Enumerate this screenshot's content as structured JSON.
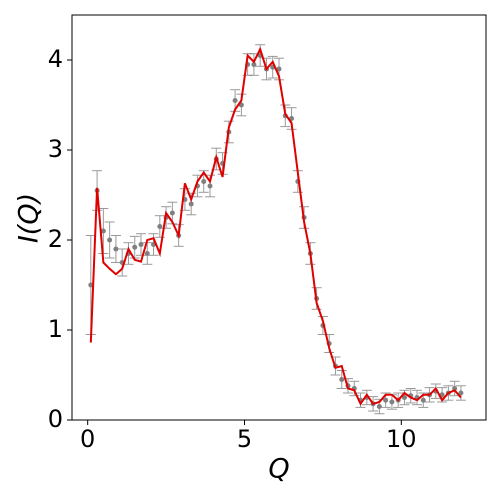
{
  "chart_data": {
    "type": "scatter",
    "xlabel": "Q",
    "ylabel": "I(Q)",
    "xlim": [
      -0.5,
      12.7
    ],
    "ylim": [
      0,
      4.5
    ],
    "xticks": [
      0,
      5,
      10
    ],
    "yticks": [
      0,
      1,
      2,
      3,
      4
    ],
    "x": [
      0.1,
      0.3,
      0.5,
      0.7,
      0.9,
      1.1,
      1.3,
      1.5,
      1.7,
      1.9,
      2.1,
      2.3,
      2.5,
      2.7,
      2.9,
      3.1,
      3.3,
      3.5,
      3.7,
      3.9,
      4.1,
      4.3,
      4.5,
      4.7,
      4.9,
      5.1,
      5.3,
      5.5,
      5.7,
      5.9,
      6.1,
      6.3,
      6.5,
      6.7,
      6.9,
      7.1,
      7.3,
      7.5,
      7.7,
      7.9,
      8.1,
      8.3,
      8.5,
      8.7,
      8.9,
      9.1,
      9.3,
      9.5,
      9.7,
      9.9,
      10.1,
      10.3,
      10.5,
      10.7,
      10.9,
      11.1,
      11.3,
      11.5,
      11.7,
      11.9
    ],
    "series": [
      {
        "type": "errorbar",
        "color": "#808080",
        "values": [
          1.5,
          2.55,
          2.1,
          2.0,
          1.9,
          1.75,
          1.85,
          1.92,
          1.95,
          1.85,
          1.95,
          2.15,
          2.25,
          2.3,
          2.05,
          2.45,
          2.4,
          2.6,
          2.65,
          2.6,
          2.9,
          2.85,
          3.2,
          3.55,
          3.5,
          3.95,
          3.95,
          4.05,
          3.9,
          3.92,
          3.9,
          3.38,
          3.35,
          2.65,
          2.25,
          1.85,
          1.35,
          1.05,
          0.85,
          0.6,
          0.45,
          0.38,
          0.35,
          0.22,
          0.25,
          0.18,
          0.15,
          0.22,
          0.2,
          0.22,
          0.25,
          0.27,
          0.25,
          0.22,
          0.28,
          0.32,
          0.28,
          0.3,
          0.35,
          0.3
        ],
        "errors": [
          0.55,
          0.22,
          0.25,
          0.2,
          0.15,
          0.15,
          0.12,
          0.12,
          0.12,
          0.12,
          0.12,
          0.12,
          0.12,
          0.12,
          0.12,
          0.12,
          0.12,
          0.12,
          0.12,
          0.12,
          0.12,
          0.12,
          0.12,
          0.12,
          0.12,
          0.12,
          0.12,
          0.12,
          0.12,
          0.12,
          0.12,
          0.12,
          0.12,
          0.12,
          0.12,
          0.12,
          0.12,
          0.1,
          0.1,
          0.1,
          0.1,
          0.08,
          0.08,
          0.08,
          0.08,
          0.08,
          0.08,
          0.08,
          0.08,
          0.08,
          0.08,
          0.08,
          0.08,
          0.08,
          0.08,
          0.08,
          0.08,
          0.08,
          0.08,
          0.08
        ]
      },
      {
        "type": "line",
        "color": "#e00000",
        "values": [
          0.86,
          2.58,
          1.75,
          1.68,
          1.62,
          1.68,
          1.9,
          1.78,
          1.76,
          2.0,
          2.02,
          1.85,
          2.3,
          2.2,
          2.05,
          2.63,
          2.45,
          2.65,
          2.75,
          2.65,
          2.92,
          2.7,
          3.25,
          3.45,
          3.55,
          4.05,
          3.98,
          4.12,
          3.9,
          3.98,
          3.82,
          3.4,
          3.3,
          2.75,
          2.2,
          1.85,
          1.3,
          1.1,
          0.8,
          0.58,
          0.6,
          0.35,
          0.33,
          0.18,
          0.28,
          0.18,
          0.2,
          0.28,
          0.28,
          0.22,
          0.3,
          0.25,
          0.22,
          0.28,
          0.28,
          0.35,
          0.22,
          0.3,
          0.33,
          0.25
        ]
      }
    ]
  }
}
